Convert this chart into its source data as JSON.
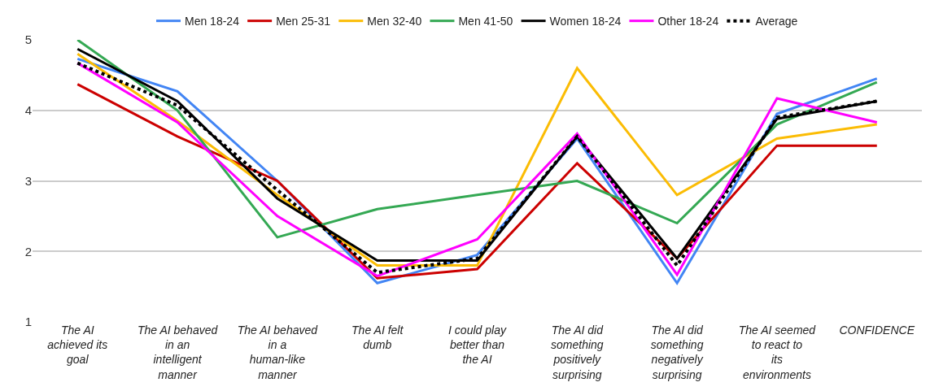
{
  "chart_data": {
    "type": "line",
    "categories": [
      "The AI achieved its goal",
      "The AI behaved in an intelligent manner",
      "The AI behaved in a human-like manner",
      "The AI felt dumb",
      "I could play better than the AI",
      "The AI did something positively surprising",
      "The AI did something negatively surprising",
      "The AI seemed to react to its environments",
      "CONFIDENCE"
    ],
    "series": [
      {
        "name": "Men 18-24",
        "color": "#4285f4",
        "values": [
          4.73,
          4.27,
          3.0,
          1.55,
          1.95,
          3.6,
          1.55,
          3.95,
          4.45
        ]
      },
      {
        "name": "Men 25-31",
        "color": "#cc0000",
        "values": [
          4.37,
          3.63,
          3.0,
          1.62,
          1.75,
          3.25,
          1.9,
          3.5,
          3.5
        ]
      },
      {
        "name": "Men 32-40",
        "color": "#fbbc04",
        "values": [
          4.8,
          3.85,
          2.8,
          1.8,
          1.8,
          4.6,
          2.8,
          3.6,
          3.8
        ]
      },
      {
        "name": "Men 41-50",
        "color": "#34a853",
        "values": [
          5.0,
          4.0,
          2.2,
          2.6,
          2.8,
          3.0,
          2.4,
          3.8,
          4.4
        ]
      },
      {
        "name": "Women 18-24",
        "color": "#000000",
        "values": [
          4.87,
          4.13,
          2.75,
          1.87,
          1.87,
          3.63,
          1.9,
          3.88,
          4.13
        ]
      },
      {
        "name": "Other 18-24",
        "color": "#ff00ff",
        "values": [
          4.67,
          3.83,
          2.5,
          1.65,
          2.17,
          3.67,
          1.67,
          4.17,
          3.83
        ]
      },
      {
        "name": "Average",
        "color": "#000000",
        "line_style": "dotted",
        "values": [
          4.67,
          4.07,
          2.87,
          1.7,
          1.9,
          3.63,
          1.8,
          3.9,
          4.13
        ]
      }
    ],
    "ylim": [
      1,
      5
    ],
    "yticks": [
      1,
      2,
      3,
      4,
      5
    ],
    "grid": "y",
    "legend": "top",
    "marker": "none",
    "line_style": "solid"
  }
}
